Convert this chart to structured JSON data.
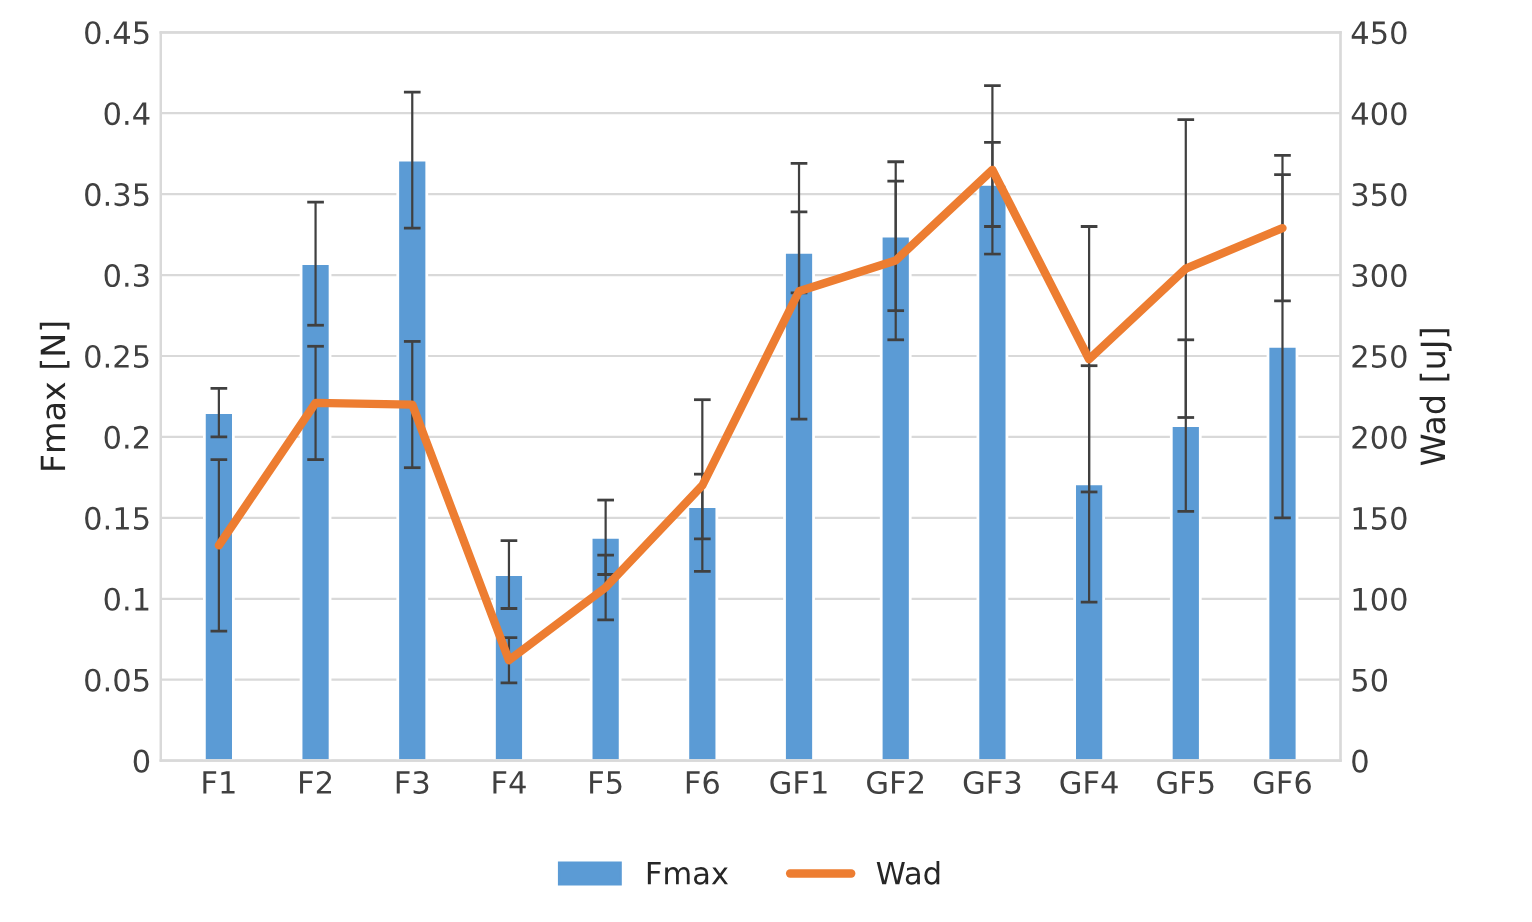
{
  "chart_data": {
    "type": "bar",
    "categories": [
      "F1",
      "F2",
      "F3",
      "F4",
      "F5",
      "F6",
      "GF1",
      "GF2",
      "GF3",
      "GF4",
      "GF5",
      "GF6"
    ],
    "series": [
      {
        "name": "Fmax",
        "color": "#5b9bd5",
        "values": [
          0.215,
          0.307,
          0.371,
          0.115,
          0.138,
          0.157,
          0.314,
          0.324,
          0.356,
          0.171,
          0.207,
          0.256
        ],
        "errors": [
          0.015,
          0.038,
          0.042,
          0.021,
          0.023,
          0.02,
          0.025,
          0.046,
          0.026,
          0.073,
          0.053,
          0.106
        ]
      },
      {
        "name": "Wad",
        "type": "line",
        "axis": "y2",
        "color": "#ed7d31",
        "values": [
          133,
          221,
          220,
          62,
          107,
          170,
          290,
          309,
          365,
          248,
          304,
          329
        ],
        "errors": [
          53,
          35,
          39,
          14,
          20,
          53,
          79,
          49,
          52,
          82,
          92,
          45
        ]
      }
    ],
    "ylabel": "Fmax [N]",
    "y2label": "Wad [uJ]",
    "ylim": [
      0,
      0.45
    ],
    "yticks": [
      0,
      0.05,
      0.1,
      0.15,
      0.2,
      0.25,
      0.3,
      0.35,
      0.4,
      0.45
    ],
    "y2lim": [
      0,
      450
    ],
    "y2ticks": [
      0,
      50,
      100,
      150,
      200,
      250,
      300,
      350,
      400,
      450
    ],
    "grid": "y",
    "legend": "bottom",
    "marker": "none",
    "line_style": "solid"
  }
}
